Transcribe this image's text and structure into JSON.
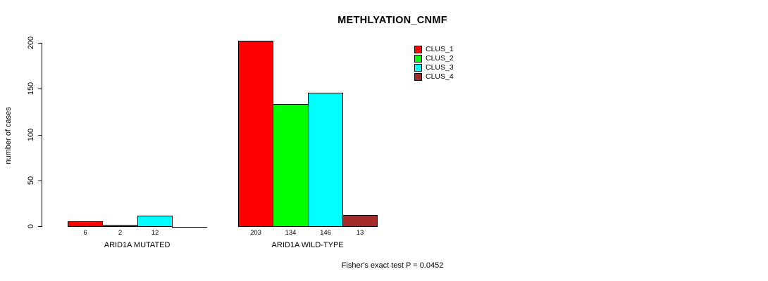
{
  "title": "METHLYATION_CNMF",
  "footer": "Fisher's exact test P = 0.0452",
  "chart_data": {
    "type": "bar",
    "title": "METHLYATION_CNMF",
    "xlabel": "",
    "ylabel": "number of cases",
    "ylim": [
      0,
      200
    ],
    "yticks": [
      0,
      50,
      100,
      150,
      200
    ],
    "grid": false,
    "legend_position": "top-right",
    "groups": [
      "ARID1A MUTATED",
      "ARID1A WILD-TYPE"
    ],
    "series": [
      {
        "name": "CLUS_1",
        "color": "#ff0000",
        "values": [
          6,
          203
        ]
      },
      {
        "name": "CLUS_2",
        "color": "#00ff00",
        "values": [
          2,
          134
        ]
      },
      {
        "name": "CLUS_3",
        "color": "#00ffff",
        "values": [
          12,
          146
        ]
      },
      {
        "name": "CLUS_4",
        "color": "#a52a2a",
        "values": [
          0,
          13
        ]
      }
    ],
    "bar_labels": [
      [
        "6",
        "2",
        "12",
        ""
      ],
      [
        "203",
        "134",
        "146",
        "13"
      ]
    ],
    "annotation": "Fisher's exact test P = 0.0452",
    "axis_color": "#000000",
    "bar_border_color": "#000000"
  }
}
